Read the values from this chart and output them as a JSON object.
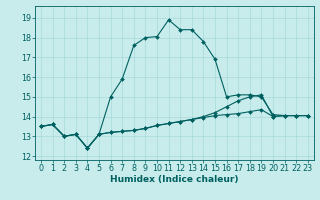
{
  "xlabel": "Humidex (Indice chaleur)",
  "bg_color": "#c8ecec",
  "grid_color": "#a8d8d8",
  "line_color": "#006060",
  "xlim": [
    -0.5,
    23.5
  ],
  "ylim": [
    11.8,
    19.6
  ],
  "yticks": [
    12,
    13,
    14,
    15,
    16,
    17,
    18,
    19
  ],
  "xticks": [
    0,
    1,
    2,
    3,
    4,
    5,
    6,
    7,
    8,
    9,
    10,
    11,
    12,
    13,
    14,
    15,
    16,
    17,
    18,
    19,
    20,
    21,
    22,
    23
  ],
  "line1_x": [
    0,
    1,
    2,
    3,
    4,
    5,
    6,
    7,
    8,
    9,
    10,
    11,
    12,
    13,
    14,
    15,
    16,
    17,
    18,
    19,
    20,
    21,
    22,
    23
  ],
  "line1_y": [
    13.5,
    13.6,
    13.0,
    13.1,
    12.4,
    13.1,
    13.2,
    13.25,
    13.3,
    13.4,
    13.55,
    13.65,
    13.75,
    13.85,
    13.95,
    14.05,
    14.1,
    14.15,
    14.25,
    14.35,
    14.0,
    14.05,
    14.05,
    14.05
  ],
  "line2_x": [
    0,
    1,
    2,
    3,
    4,
    5,
    6,
    7,
    8,
    9,
    10,
    11,
    12,
    13,
    14,
    15,
    16,
    17,
    18,
    19,
    20,
    21,
    22,
    23
  ],
  "line2_y": [
    13.5,
    13.6,
    13.0,
    13.1,
    12.4,
    13.1,
    13.2,
    13.25,
    13.3,
    13.4,
    13.55,
    13.65,
    13.75,
    13.85,
    14.0,
    14.2,
    14.5,
    14.8,
    15.0,
    15.1,
    14.0,
    14.05,
    14.05,
    14.05
  ],
  "line3_x": [
    0,
    1,
    2,
    3,
    4,
    5,
    6,
    7,
    8,
    9,
    10,
    11,
    12,
    13,
    14,
    15,
    16,
    17,
    18,
    19,
    20,
    21,
    22,
    23
  ],
  "line3_y": [
    13.5,
    13.6,
    13.0,
    13.1,
    12.4,
    13.1,
    15.0,
    15.9,
    17.6,
    18.0,
    18.05,
    18.9,
    18.4,
    18.4,
    17.8,
    16.9,
    15.0,
    15.1,
    15.1,
    15.0,
    14.1,
    14.05,
    14.05,
    14.05
  ],
  "xlabel_fontsize": 6.5,
  "tick_fontsize": 5.8,
  "marker_size": 2.0,
  "line_width": 0.8
}
